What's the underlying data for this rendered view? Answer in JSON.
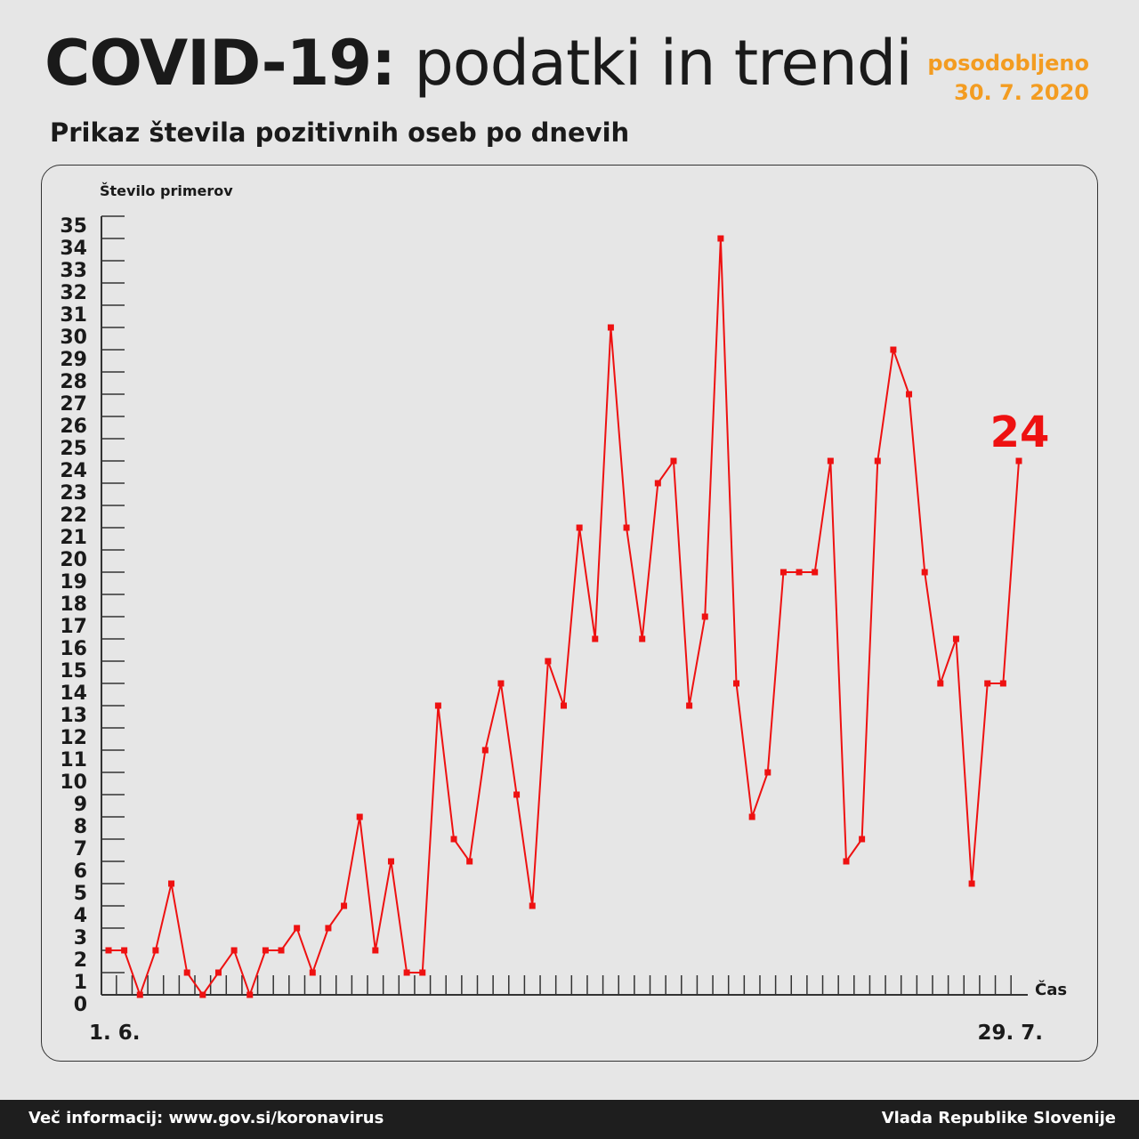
{
  "header": {
    "title_bold": "COVID-19:",
    "title_light": "podatki in trendi",
    "updated_label": "posodobljeno",
    "updated_date": "30. 7. 2020",
    "subtitle": "Prikaz števila pozitivnih oseb po dnevih"
  },
  "chart_data": {
    "type": "line",
    "title": "Prikaz števila pozitivnih oseb po dnevih",
    "ylabel": "Število primerov",
    "xlabel": "Čas",
    "x_start_label": "1. 6.",
    "x_end_label": "29. 7.",
    "ylim": [
      0,
      35
    ],
    "yticks": [
      0,
      1,
      2,
      3,
      4,
      5,
      6,
      7,
      8,
      9,
      10,
      11,
      12,
      13,
      14,
      15,
      16,
      17,
      18,
      19,
      20,
      21,
      22,
      23,
      24,
      25,
      26,
      27,
      28,
      29,
      30,
      31,
      32,
      33,
      34,
      35
    ],
    "values": [
      2,
      2,
      0,
      2,
      5,
      1,
      0,
      1,
      2,
      0,
      2,
      2,
      3,
      1,
      3,
      4,
      8,
      2,
      6,
      1,
      1,
      13,
      7,
      6,
      11,
      14,
      9,
      4,
      15,
      13,
      21,
      16,
      30,
      21,
      16,
      23,
      24,
      13,
      17,
      34,
      14,
      8,
      10,
      19,
      19,
      19,
      24,
      6,
      7,
      24,
      29,
      27,
      19,
      14,
      16,
      5,
      14,
      14,
      24
    ],
    "last_value_label": "24",
    "color": "#ee1111"
  },
  "footer": {
    "info": "Več informacij: www.gov.si/koronavirus",
    "org": "Vlada Republike Slovenije"
  }
}
